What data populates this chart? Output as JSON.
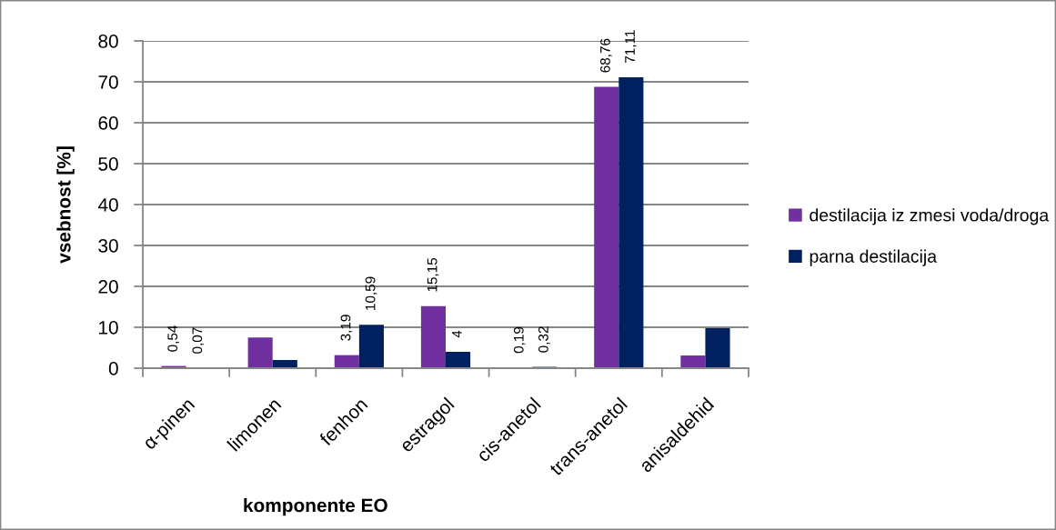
{
  "chart_data": {
    "type": "bar",
    "xlabel": "komponente EO",
    "ylabel": "vsebnost [%]",
    "categories": [
      "α-pinen",
      "limonen",
      "fenhon",
      "estragol",
      "cis-anetol",
      "trans-anetol",
      "anisaldehid"
    ],
    "series": [
      {
        "name": "destilacija iz zmesi voda/droga",
        "color": "#7030a0",
        "values": [
          0.54,
          7.5,
          3.19,
          15.15,
          0.19,
          68.76,
          3.1
        ],
        "value_labels": [
          "0,54",
          null,
          "3,19",
          "15,15",
          "0,19",
          "68,76",
          null
        ]
      },
      {
        "name": "parna destilacija",
        "color": "#002060",
        "values": [
          0.07,
          2.0,
          10.59,
          4,
          0.32,
          71.11,
          9.8
        ],
        "value_labels": [
          "0,07",
          null,
          "10,59",
          "4",
          "0,32",
          "71,11",
          null
        ]
      }
    ],
    "ylim": [
      0,
      80
    ],
    "yticks": [
      0,
      10,
      20,
      30,
      40,
      50,
      60,
      70,
      80
    ],
    "grid": "y",
    "legend": "right"
  }
}
